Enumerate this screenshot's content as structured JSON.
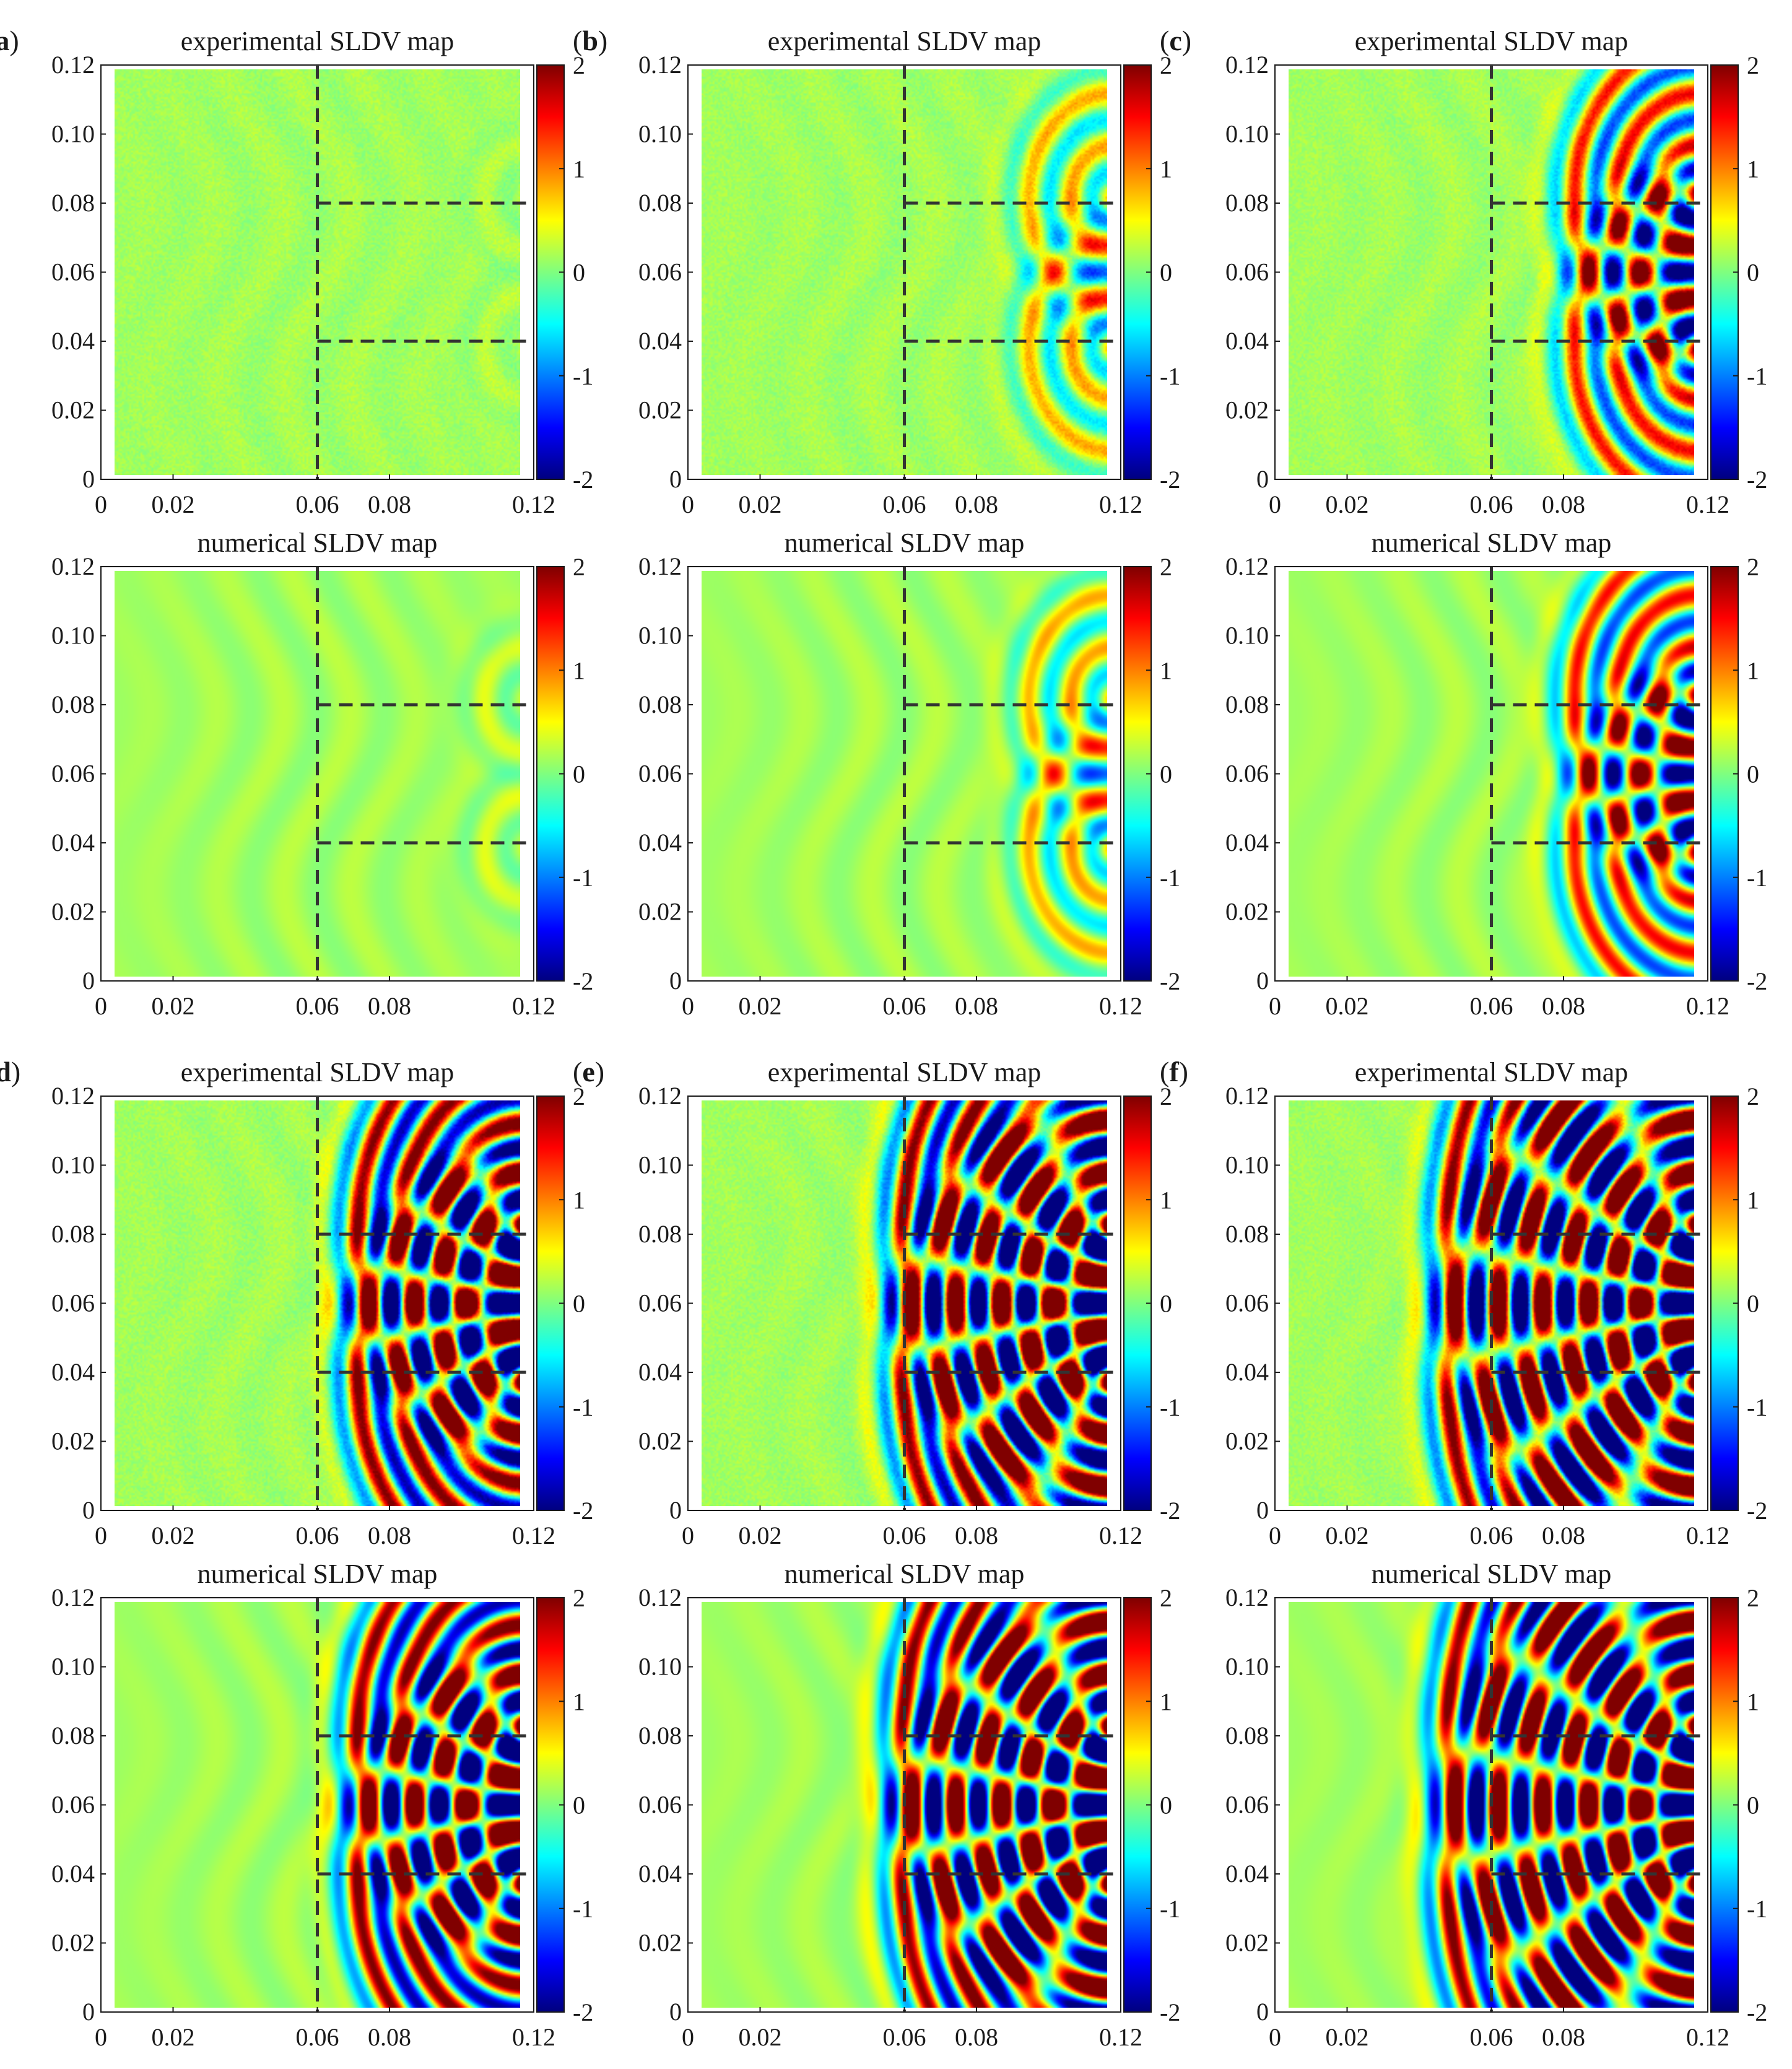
{
  "figure": {
    "colormap": "jet",
    "colors": {
      "jet": [
        "#00007f",
        "#0000ff",
        "#007fff",
        "#00ffff",
        "#7fff7f",
        "#ffff00",
        "#ff7f00",
        "#ff0000",
        "#7f0000"
      ],
      "dashed_line": "#333333",
      "axis": "#1a1a1a",
      "background_field": "#86d98c"
    }
  },
  "chart_data": [
    {
      "id": "a",
      "panel_label": "a",
      "title": "experimental SLDV map",
      "type": "heatmap",
      "field": "wavefield amplitude",
      "intensity": 0.12,
      "rings": 0,
      "numerical": false,
      "x_ticks": [
        "0",
        "0.02",
        "0.06",
        "0.08",
        "0.12"
      ],
      "y_ticks": [
        "0",
        "0.02",
        "0.04",
        "0.06",
        "0.08",
        "0.10",
        "0.12"
      ],
      "xlim": [
        0,
        0.12
      ],
      "ylim": [
        0,
        0.12
      ],
      "colorbar": {
        "ticks": [
          "2",
          "1",
          "0",
          "-1",
          "-2"
        ],
        "range": [
          -2,
          2
        ]
      },
      "dashed_lines": {
        "vertical_x": 0.06,
        "horizontal_y": [
          0.08,
          0.04
        ],
        "horizontal_from_x": 0.06
      }
    },
    {
      "id": "b",
      "panel_label": "b",
      "title": "experimental SLDV map",
      "type": "heatmap",
      "field": "wavefield amplitude",
      "intensity": 0.8,
      "rings": 2,
      "numerical": false,
      "x_ticks": [
        "0",
        "0.02",
        "0.06",
        "0.08",
        "0.12"
      ],
      "y_ticks": [
        "0",
        "0.02",
        "0.04",
        "0.06",
        "0.08",
        "0.10",
        "0.12"
      ],
      "xlim": [
        0,
        0.12
      ],
      "ylim": [
        0,
        0.12
      ],
      "colorbar": {
        "ticks": [
          "2",
          "1",
          "0",
          "-1",
          "-2"
        ],
        "range": [
          -2,
          2
        ]
      },
      "dashed_lines": {
        "vertical_x": 0.06,
        "horizontal_y": [
          0.08,
          0.04
        ],
        "horizontal_from_x": 0.06
      }
    },
    {
      "id": "c",
      "panel_label": "c",
      "title": "experimental SLDV map",
      "type": "heatmap",
      "field": "wavefield amplitude",
      "intensity": 1.6,
      "rings": 4,
      "numerical": false,
      "x_ticks": [
        "0",
        "0.02",
        "0.06",
        "0.08",
        "0.12"
      ],
      "y_ticks": [
        "0",
        "0.02",
        "0.04",
        "0.06",
        "0.08",
        "0.10",
        "0.12"
      ],
      "xlim": [
        0,
        0.12
      ],
      "ylim": [
        0,
        0.12
      ],
      "colorbar": {
        "ticks": [
          "2",
          "1",
          "0",
          "-1",
          "-2"
        ],
        "range": [
          -2,
          2
        ]
      },
      "dashed_lines": {
        "vertical_x": 0.06,
        "horizontal_y": [
          0.08,
          0.04
        ],
        "horizontal_from_x": 0.06
      }
    },
    {
      "id": "a_num",
      "panel_label": "",
      "title": "numerical SLDV map",
      "type": "heatmap",
      "field": "wavefield amplitude",
      "intensity": 0.25,
      "rings": 0,
      "numerical": true,
      "x_ticks": [
        "0",
        "0.02",
        "0.06",
        "0.08",
        "0.12"
      ],
      "y_ticks": [
        "0",
        "0.02",
        "0.04",
        "0.06",
        "0.08",
        "0.10",
        "0.12"
      ],
      "xlim": [
        0,
        0.12
      ],
      "ylim": [
        0,
        0.12
      ],
      "colorbar": {
        "ticks": [
          "2",
          "1",
          "0",
          "-1",
          "-2"
        ],
        "range": [
          -2,
          2
        ]
      },
      "dashed_lines": {
        "vertical_x": 0.06,
        "horizontal_y": [
          0.08,
          0.04
        ],
        "horizontal_from_x": 0.06
      }
    },
    {
      "id": "b_num",
      "panel_label": "",
      "title": "numerical SLDV map",
      "type": "heatmap",
      "field": "wavefield amplitude",
      "intensity": 0.8,
      "rings": 2,
      "numerical": true,
      "x_ticks": [
        "0",
        "0.02",
        "0.06",
        "0.08",
        "0.12"
      ],
      "y_ticks": [
        "0",
        "0.02",
        "0.04",
        "0.06",
        "0.08",
        "0.10",
        "0.12"
      ],
      "xlim": [
        0,
        0.12
      ],
      "ylim": [
        0,
        0.12
      ],
      "colorbar": {
        "ticks": [
          "2",
          "1",
          "0",
          "-1",
          "-2"
        ],
        "range": [
          -2,
          2
        ]
      },
      "dashed_lines": {
        "vertical_x": 0.06,
        "horizontal_y": [
          0.08,
          0.04
        ],
        "horizontal_from_x": 0.06
      }
    },
    {
      "id": "c_num",
      "panel_label": "",
      "title": "numerical SLDV map",
      "type": "heatmap",
      "field": "wavefield amplitude",
      "intensity": 1.6,
      "rings": 4,
      "numerical": true,
      "x_ticks": [
        "0",
        "0.02",
        "0.06",
        "0.08",
        "0.12"
      ],
      "y_ticks": [
        "0",
        "0.02",
        "0.04",
        "0.06",
        "0.08",
        "0.10",
        "0.12"
      ],
      "xlim": [
        0,
        0.12
      ],
      "ylim": [
        0,
        0.12
      ],
      "colorbar": {
        "ticks": [
          "2",
          "1",
          "0",
          "-1",
          "-2"
        ],
        "range": [
          -2,
          2
        ]
      },
      "dashed_lines": {
        "vertical_x": 0.06,
        "horizontal_y": [
          0.08,
          0.04
        ],
        "horizontal_from_x": 0.06
      }
    },
    {
      "id": "d",
      "panel_label": "d",
      "title": "experimental SLDV map",
      "type": "heatmap",
      "field": "wavefield amplitude",
      "intensity": 2.4,
      "rings": 6,
      "numerical": false,
      "x_ticks": [
        "0",
        "0.02",
        "0.06",
        "0.08",
        "0.12"
      ],
      "y_ticks": [
        "0",
        "0.02",
        "0.04",
        "0.06",
        "0.08",
        "0.10",
        "0.12"
      ],
      "xlim": [
        0,
        0.12
      ],
      "ylim": [
        0,
        0.12
      ],
      "colorbar": {
        "ticks": [
          "2",
          "1",
          "0",
          "-1",
          "-2"
        ],
        "range": [
          -2,
          2
        ]
      },
      "dashed_lines": {
        "vertical_x": 0.06,
        "horizontal_y": [
          0.08,
          0.04
        ],
        "horizontal_from_x": 0.06
      }
    },
    {
      "id": "e",
      "panel_label": "e",
      "title": "experimental SLDV map",
      "type": "heatmap",
      "field": "wavefield amplitude",
      "intensity": 2.6,
      "rings": 8,
      "numerical": false,
      "x_ticks": [
        "0",
        "0.02",
        "0.06",
        "0.08",
        "0.12"
      ],
      "y_ticks": [
        "0",
        "0.02",
        "0.04",
        "0.06",
        "0.08",
        "0.10",
        "0.12"
      ],
      "xlim": [
        0,
        0.12
      ],
      "ylim": [
        0,
        0.12
      ],
      "colorbar": {
        "ticks": [
          "2",
          "1",
          "0",
          "-1",
          "-2"
        ],
        "range": [
          -2,
          2
        ]
      },
      "dashed_lines": {
        "vertical_x": 0.06,
        "horizontal_y": [
          0.08,
          0.04
        ],
        "horizontal_from_x": 0.06
      }
    },
    {
      "id": "f",
      "panel_label": "f",
      "title": "experimental SLDV map",
      "type": "heatmap",
      "field": "wavefield amplitude",
      "intensity": 2.6,
      "rings": 10,
      "numerical": false,
      "x_ticks": [
        "0",
        "0.02",
        "0.06",
        "0.08",
        "0.12"
      ],
      "y_ticks": [
        "0",
        "0.02",
        "0.04",
        "0.06",
        "0.08",
        "0.10",
        "0.12"
      ],
      "xlim": [
        0,
        0.12
      ],
      "ylim": [
        0,
        0.12
      ],
      "colorbar": {
        "ticks": [
          "2",
          "1",
          "0",
          "-1",
          "-2"
        ],
        "range": [
          -2,
          2
        ]
      },
      "dashed_lines": {
        "vertical_x": 0.06,
        "horizontal_y": [
          0.08,
          0.04
        ],
        "horizontal_from_x": 0.06
      }
    },
    {
      "id": "d_num",
      "panel_label": "",
      "title": "numerical SLDV map",
      "type": "heatmap",
      "field": "wavefield amplitude",
      "intensity": 2.4,
      "rings": 6,
      "numerical": true,
      "x_ticks": [
        "0",
        "0.02",
        "0.06",
        "0.08",
        "0.12"
      ],
      "y_ticks": [
        "0",
        "0.02",
        "0.04",
        "0.06",
        "0.08",
        "0.10",
        "0.12"
      ],
      "xlim": [
        0,
        0.12
      ],
      "ylim": [
        0,
        0.12
      ],
      "colorbar": {
        "ticks": [
          "2",
          "1",
          "0",
          "-1",
          "-2"
        ],
        "range": [
          -2,
          2
        ]
      },
      "dashed_lines": {
        "vertical_x": 0.06,
        "horizontal_y": [
          0.08,
          0.04
        ],
        "horizontal_from_x": 0.06
      }
    },
    {
      "id": "e_num",
      "panel_label": "",
      "title": "numerical SLDV map",
      "type": "heatmap",
      "field": "wavefield amplitude",
      "intensity": 2.6,
      "rings": 8,
      "numerical": true,
      "x_ticks": [
        "0",
        "0.02",
        "0.06",
        "0.08",
        "0.12"
      ],
      "y_ticks": [
        "0",
        "0.02",
        "0.04",
        "0.06",
        "0.08",
        "0.10",
        "0.12"
      ],
      "xlim": [
        0,
        0.12
      ],
      "ylim": [
        0,
        0.12
      ],
      "colorbar": {
        "ticks": [
          "2",
          "1",
          "0",
          "-1",
          "-2"
        ],
        "range": [
          -2,
          2
        ]
      },
      "dashed_lines": {
        "vertical_x": 0.06,
        "horizontal_y": [
          0.08,
          0.04
        ],
        "horizontal_from_x": 0.06
      }
    },
    {
      "id": "f_num",
      "panel_label": "",
      "title": "numerical SLDV map",
      "type": "heatmap",
      "field": "wavefield amplitude",
      "intensity": 2.6,
      "rings": 10,
      "numerical": true,
      "x_ticks": [
        "0",
        "0.02",
        "0.06",
        "0.08",
        "0.12"
      ],
      "y_ticks": [
        "0",
        "0.02",
        "0.04",
        "0.06",
        "0.08",
        "0.10",
        "0.12"
      ],
      "xlim": [
        0,
        0.12
      ],
      "ylim": [
        0,
        0.12
      ],
      "colorbar": {
        "ticks": [
          "2",
          "1",
          "0",
          "-1",
          "-2"
        ],
        "range": [
          -2,
          2
        ]
      },
      "dashed_lines": {
        "vertical_x": 0.06,
        "horizontal_y": [
          0.08,
          0.04
        ],
        "horizontal_from_x": 0.06
      }
    }
  ]
}
